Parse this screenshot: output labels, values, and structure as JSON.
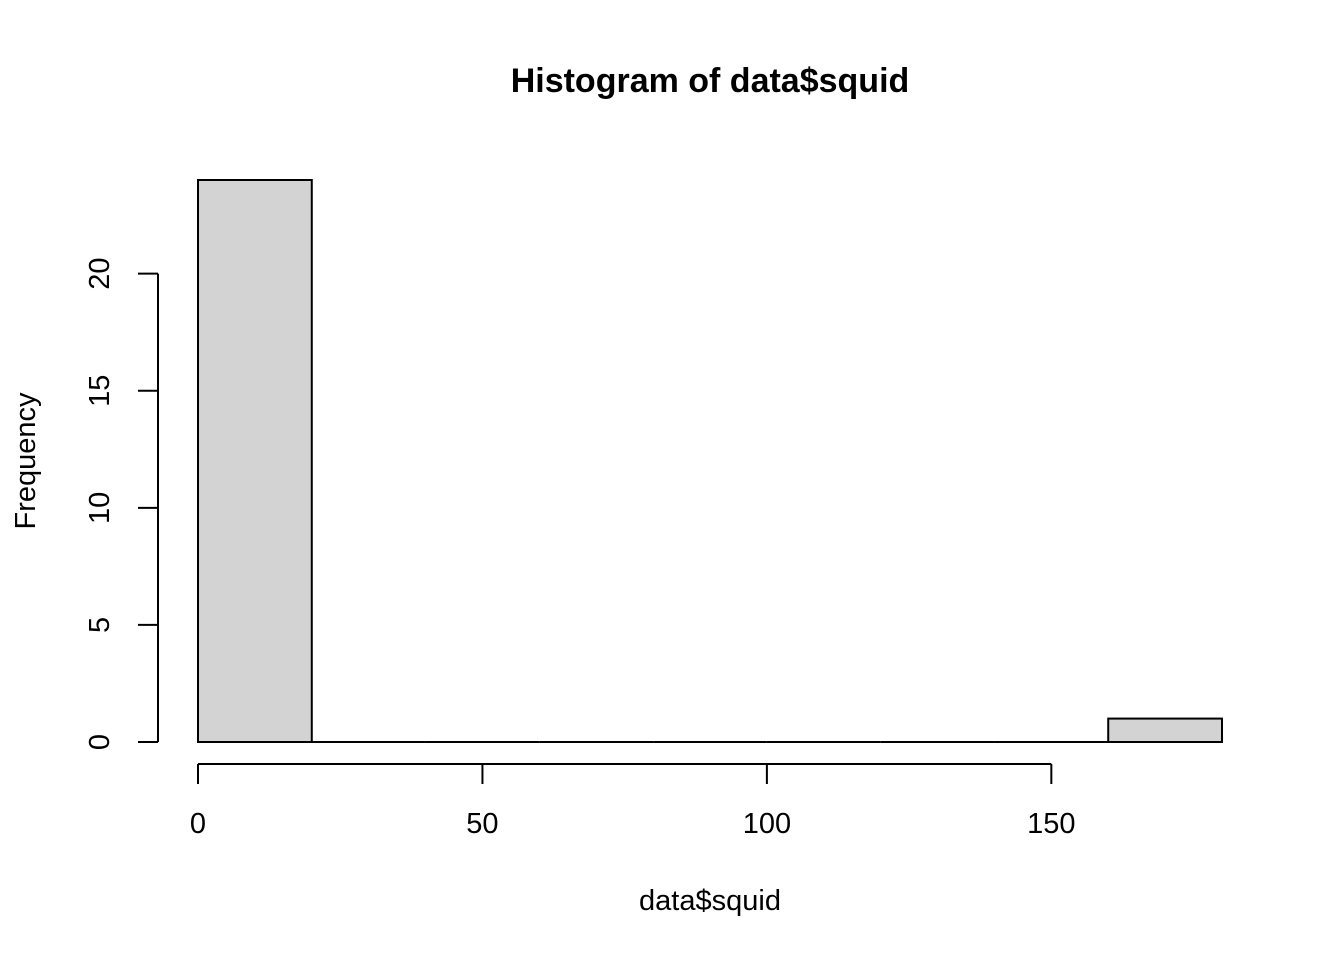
{
  "chart_data": {
    "type": "bar",
    "title": "Histogram of data$squid",
    "xlabel": "data$squid",
    "ylabel": "Frequency",
    "bins": [
      {
        "start": 0,
        "end": 20,
        "count": 24
      },
      {
        "start": 20,
        "end": 40,
        "count": 0
      },
      {
        "start": 40,
        "end": 60,
        "count": 0
      },
      {
        "start": 60,
        "end": 80,
        "count": 0
      },
      {
        "start": 80,
        "end": 100,
        "count": 0
      },
      {
        "start": 100,
        "end": 120,
        "count": 0
      },
      {
        "start": 120,
        "end": 140,
        "count": 0
      },
      {
        "start": 140,
        "end": 160,
        "count": 0
      },
      {
        "start": 160,
        "end": 180,
        "count": 1
      }
    ],
    "xlim": [
      0,
      180
    ],
    "ylim": [
      0,
      24
    ],
    "x_ticks": [
      0,
      50,
      100,
      150
    ],
    "x_tick_labels": [
      "0",
      "50",
      "100",
      "150"
    ],
    "y_ticks": [
      0,
      5,
      10,
      15,
      20
    ],
    "y_tick_labels": [
      "0",
      "5",
      "10",
      "15",
      "20"
    ],
    "grid": false,
    "bar_color": "#D3D3D3",
    "bar_border_color": "#000000"
  }
}
